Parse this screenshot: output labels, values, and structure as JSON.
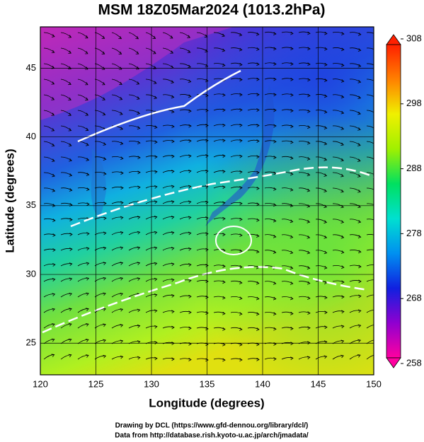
{
  "chart_data": {
    "type": "map",
    "title": "MSM 18Z05Mar2024 (1013.2hPa)",
    "xlabel": "Longitude (degrees)",
    "ylabel": "Latitude  (degrees)",
    "xlim": [
      120,
      150
    ],
    "ylim": [
      22.7,
      48
    ],
    "xticks": [
      120,
      125,
      130,
      135,
      140,
      145,
      150
    ],
    "yticks": [
      25,
      30,
      35,
      40,
      45
    ],
    "grid": true,
    "colorbar": {
      "lim": [
        258,
        308
      ],
      "ticks": [
        258,
        268,
        278,
        288,
        298,
        308
      ],
      "colors": [
        "#ff00a0",
        "#9000d0",
        "#1020e0",
        "#0090f0",
        "#00e0d0",
        "#00e060",
        "#a0f000",
        "#f0f000",
        "#ff8000",
        "#ff2000"
      ]
    },
    "footer": [
      "Drawing by DCL (https://www.gfd-dennou.org/library/dcl/)",
      "Data from http://database.rish.kyoto-u.ac.jp/arch/jmadata/"
    ]
  }
}
